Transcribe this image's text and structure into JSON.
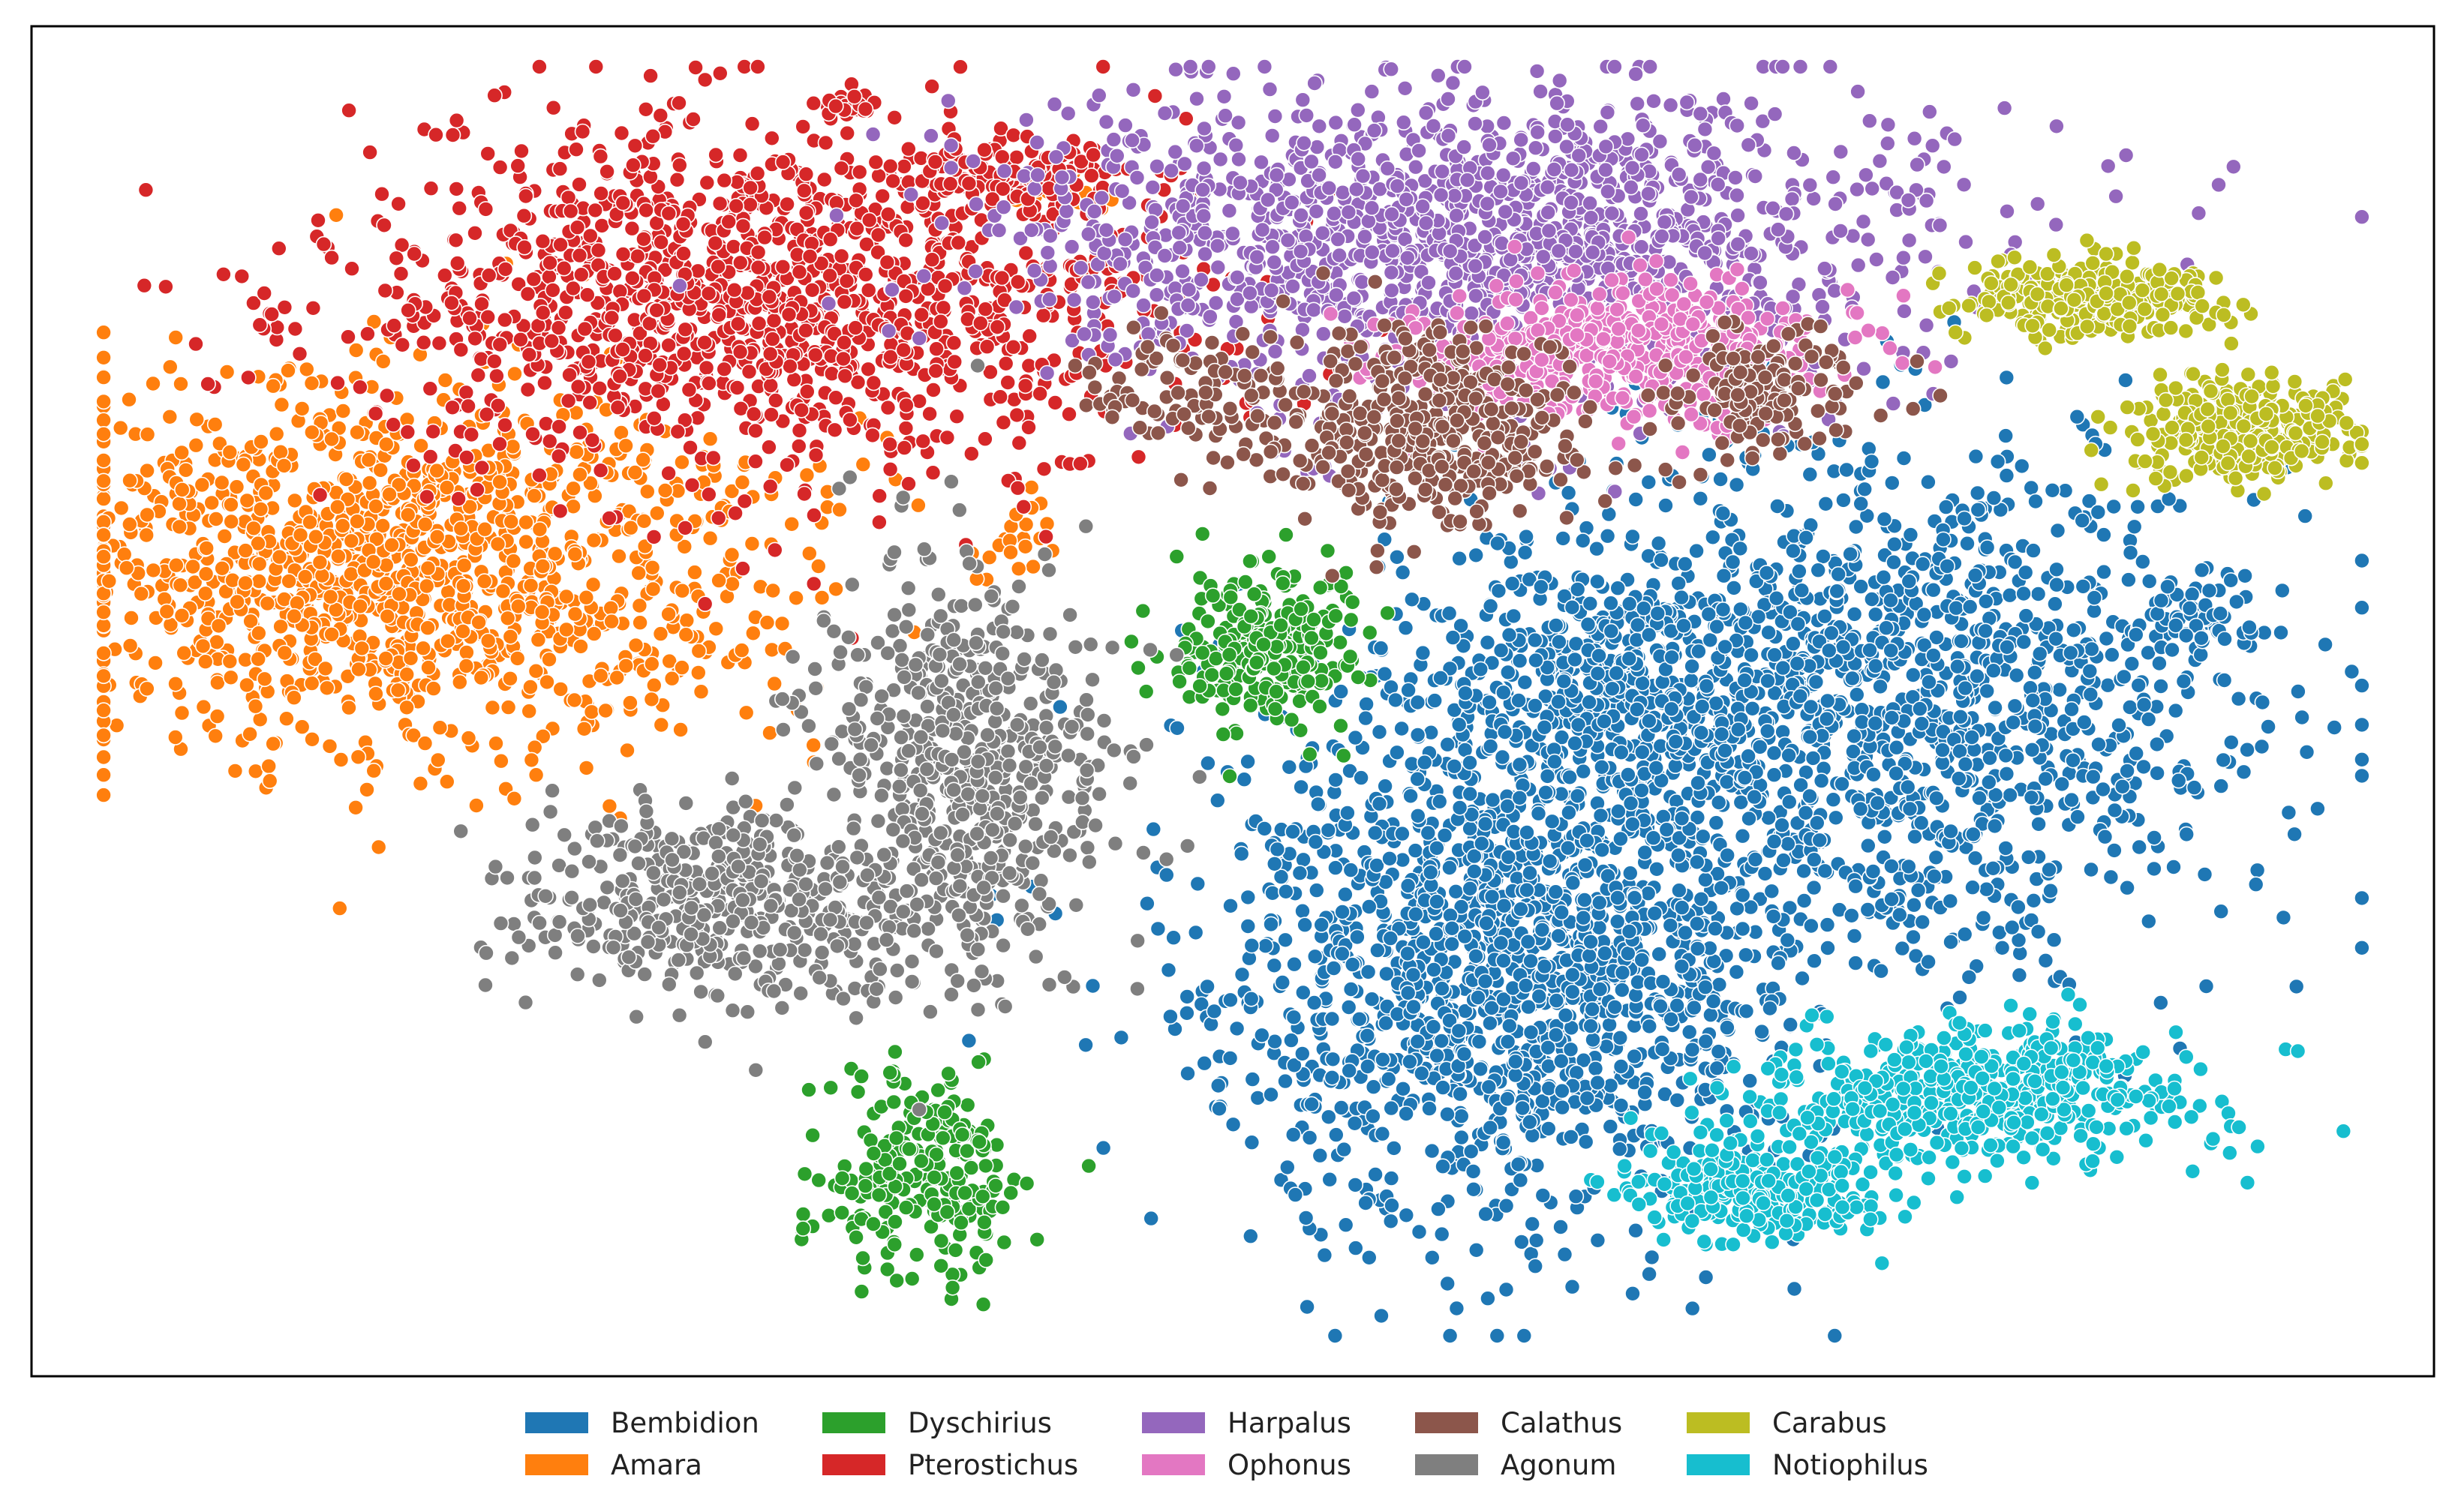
{
  "chart_data": {
    "type": "scatter",
    "title": "",
    "xlabel": "",
    "ylabel": "",
    "axes_ticks": "none",
    "xlim": [
      0,
      100
    ],
    "ylim": [
      0,
      100
    ],
    "grid": false,
    "legend_placement": "bottom-center",
    "series": [
      {
        "name": "Bembidion",
        "color": "#1f77b4",
        "clusters": [
          {
            "cx": 61,
            "cy": 31,
            "sx": 7.5,
            "sy": 12,
            "n": 1500
          },
          {
            "cx": 76,
            "cy": 50,
            "sx": 9.5,
            "sy": 11,
            "n": 1500
          },
          {
            "cx": 65,
            "cy": 52,
            "sx": 3.5,
            "sy": 5,
            "n": 250
          },
          {
            "cx": 90,
            "cy": 56,
            "sx": 1.3,
            "sy": 1.5,
            "n": 40
          }
        ]
      },
      {
        "name": "Amara",
        "color": "#ff7f0e",
        "clusters": [
          {
            "cx": 15,
            "cy": 60,
            "sx": 9,
            "sy": 8,
            "n": 1300
          },
          {
            "cx": 43,
            "cy": 88,
            "sx": 1,
            "sy": 1,
            "n": 25
          },
          {
            "cx": 41,
            "cy": 62,
            "sx": 1.2,
            "sy": 1.5,
            "n": 20
          }
        ]
      },
      {
        "name": "Dyschirius",
        "color": "#2ca02c",
        "clusters": [
          {
            "cx": 51,
            "cy": 54,
            "sx": 2.2,
            "sy": 3.5,
            "n": 250
          },
          {
            "cx": 37,
            "cy": 15,
            "sx": 2.3,
            "sy": 4.5,
            "n": 250
          }
        ]
      },
      {
        "name": "Pterostichus",
        "color": "#d62728",
        "clusters": [
          {
            "cx": 30,
            "cy": 80,
            "sx": 10,
            "sy": 7.5,
            "n": 1300
          },
          {
            "cx": 41,
            "cy": 89,
            "sx": 2.5,
            "sy": 1.5,
            "n": 120
          },
          {
            "cx": 34,
            "cy": 94,
            "sx": 0.6,
            "sy": 0.5,
            "n": 25
          }
        ]
      },
      {
        "name": "Harpalus",
        "color": "#9467bd",
        "clusters": [
          {
            "cx": 60,
            "cy": 84,
            "sx": 12,
            "sy": 7,
            "n": 1200
          },
          {
            "cx": 61,
            "cy": 86,
            "sx": 8,
            "sy": 6,
            "n": 300
          }
        ]
      },
      {
        "name": "Ophonus",
        "color": "#e377c2",
        "clusters": [
          {
            "cx": 66,
            "cy": 76,
            "sx": 5,
            "sy": 3,
            "n": 500
          }
        ]
      },
      {
        "name": "Calathus",
        "color": "#8c564b",
        "clusters": [
          {
            "cx": 58,
            "cy": 70,
            "sx": 4,
            "sy": 4,
            "n": 450
          },
          {
            "cx": 72,
            "cy": 73,
            "sx": 2.5,
            "sy": 3,
            "n": 150
          },
          {
            "cx": 48,
            "cy": 73,
            "sx": 2.5,
            "sy": 2.5,
            "n": 80
          }
        ]
      },
      {
        "name": "Agonum",
        "color": "#7f7f7f",
        "clusters": [
          {
            "cx": 39,
            "cy": 45,
            "sx": 3.5,
            "sy": 9,
            "n": 600
          },
          {
            "cx": 29,
            "cy": 35,
            "sx": 5,
            "sy": 4,
            "n": 450
          }
        ]
      },
      {
        "name": "Carabus",
        "color": "#bcbd22",
        "clusters": [
          {
            "cx": 86,
            "cy": 80,
            "sx": 3.2,
            "sy": 1.6,
            "n": 300
          },
          {
            "cx": 92,
            "cy": 70,
            "sx": 2.8,
            "sy": 2.2,
            "n": 300
          }
        ]
      },
      {
        "name": "Notiophilus",
        "color": "#17becf",
        "clusters": [
          {
            "cx": 81,
            "cy": 21,
            "sx": 5.5,
            "sy": 3,
            "n": 550
          },
          {
            "cx": 72,
            "cy": 14,
            "sx": 3.2,
            "sy": 2.2,
            "n": 280
          }
        ]
      }
    ]
  }
}
